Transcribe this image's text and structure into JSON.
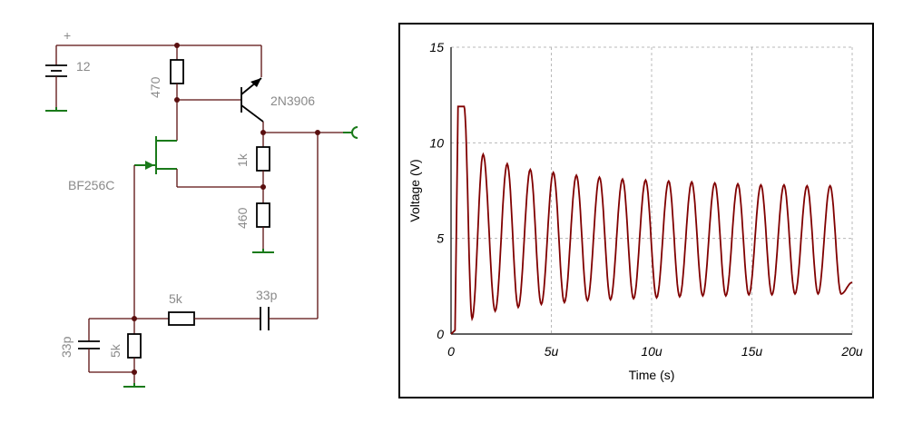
{
  "schematic": {
    "battery_label": "12",
    "plus_label": "+",
    "r_top_label": "470",
    "transistor_label": "2N3906",
    "jfet_label": "BF256C",
    "r_1k_label": "1k",
    "r_460_label": "460",
    "r_series_label": "5k",
    "c_series_label": "33p",
    "c_shunt_label": "33p",
    "r_shunt_label": "5k"
  },
  "chart_data": {
    "type": "line",
    "xlabel": "Time (s)",
    "ylabel": "Voltage (V)",
    "xlim": [
      0,
      20
    ],
    "ylim": [
      0,
      15
    ],
    "x_ticks": [
      "0",
      "5u",
      "10u",
      "15u",
      "20u"
    ],
    "x_tick_values": [
      0,
      5,
      10,
      15,
      20
    ],
    "y_ticks": [
      "0",
      "5",
      "10",
      "15"
    ],
    "y_tick_values": [
      0,
      5,
      10,
      15
    ],
    "grid": true,
    "series_color": "#800000",
    "waveform": {
      "initial_rise": [
        [
          0,
          0
        ],
        [
          0.2,
          0.2
        ],
        [
          0.35,
          11.9
        ],
        [
          0.65,
          11.9
        ]
      ],
      "troughs": [
        [
          1.05,
          0.8
        ],
        [
          2.2,
          1.2
        ],
        [
          3.35,
          1.4
        ],
        [
          4.5,
          1.55
        ],
        [
          5.65,
          1.65
        ],
        [
          6.8,
          1.75
        ],
        [
          7.95,
          1.8
        ],
        [
          9.1,
          1.85
        ],
        [
          10.25,
          1.9
        ],
        [
          11.4,
          1.95
        ],
        [
          12.55,
          2.0
        ],
        [
          13.7,
          2.0
        ],
        [
          14.85,
          2.05
        ],
        [
          16.0,
          2.05
        ],
        [
          17.15,
          2.1
        ],
        [
          18.3,
          2.1
        ],
        [
          19.45,
          2.1
        ]
      ],
      "peaks": [
        [
          1.6,
          9.4
        ],
        [
          2.8,
          8.9
        ],
        [
          3.95,
          8.6
        ],
        [
          5.1,
          8.45
        ],
        [
          6.25,
          8.3
        ],
        [
          7.4,
          8.2
        ],
        [
          8.55,
          8.1
        ],
        [
          9.7,
          8.05
        ],
        [
          10.85,
          8.0
        ],
        [
          12.0,
          7.95
        ],
        [
          13.15,
          7.9
        ],
        [
          14.3,
          7.85
        ],
        [
          15.45,
          7.8
        ],
        [
          16.6,
          7.8
        ],
        [
          17.75,
          7.75
        ],
        [
          18.9,
          7.75
        ]
      ],
      "end": [
        20,
        2.7
      ]
    }
  }
}
